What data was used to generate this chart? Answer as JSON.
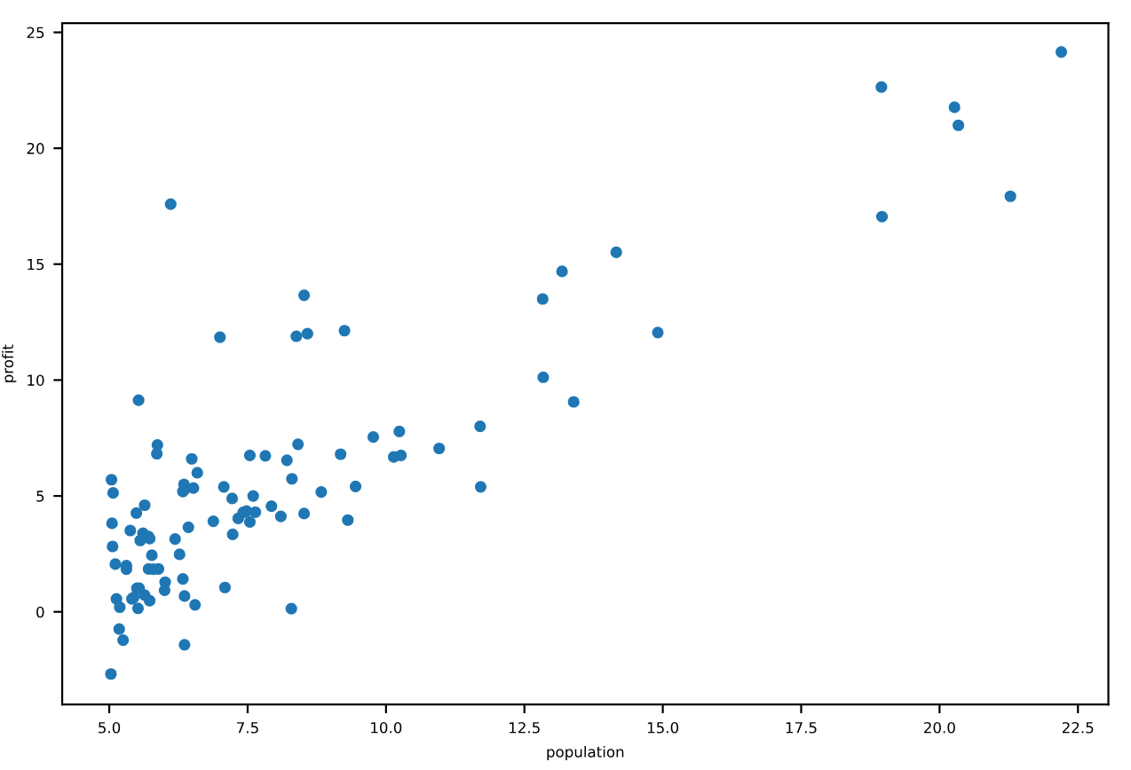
{
  "chart_data": {
    "type": "scatter",
    "xlabel": "population",
    "ylabel": "profit",
    "color": "#1f77b4",
    "marker": "circle",
    "x": [
      6.11,
      5.53,
      8.52,
      7.0,
      5.86,
      8.38,
      7.48,
      8.58,
      6.49,
      5.05,
      5.71,
      14.16,
      5.73,
      8.41,
      5.64,
      5.38,
      6.37,
      5.13,
      6.43,
      7.07,
      6.19,
      20.27,
      5.49,
      6.33,
      5.56,
      18.95,
      12.83,
      10.96,
      13.18,
      22.2,
      5.25,
      6.59,
      9.25,
      5.89,
      8.21,
      7.93,
      8.1,
      5.61,
      12.84,
      6.35,
      5.41,
      6.88,
      11.71,
      5.77,
      7.82,
      7.09,
      5.07,
      5.8,
      11.7,
      5.54,
      7.54,
      5.31,
      7.42,
      7.6,
      6.33,
      6.36,
      6.27,
      5.64,
      9.31,
      9.45,
      8.83,
      5.18,
      21.28,
      14.91,
      18.96,
      7.22,
      8.3,
      10.24,
      5.5,
      20.34,
      10.14,
      7.33,
      6.01,
      7.23,
      5.03,
      6.55,
      7.54,
      5.04,
      10.27,
      5.11,
      5.73,
      5.19,
      6.36,
      9.77,
      6.52,
      8.52,
      9.18,
      6.0,
      5.52,
      5.06,
      5.71,
      7.64,
      5.87,
      5.31,
      8.29,
      13.39,
      5.44
    ],
    "values": [
      17.59,
      9.13,
      13.66,
      11.85,
      6.82,
      11.89,
      4.35,
      12.0,
      6.6,
      3.82,
      3.25,
      15.51,
      3.16,
      7.23,
      0.72,
      3.51,
      5.3,
      0.56,
      3.65,
      5.39,
      3.14,
      21.77,
      4.26,
      5.19,
      3.08,
      22.64,
      13.5,
      7.05,
      14.69,
      24.15,
      -1.22,
      6.0,
      12.13,
      1.85,
      6.54,
      4.56,
      4.12,
      3.39,
      10.12,
      5.5,
      0.56,
      3.91,
      5.39,
      2.44,
      6.73,
      1.05,
      5.13,
      1.84,
      8.0,
      1.02,
      6.75,
      1.84,
      4.29,
      5.0,
      1.42,
      -1.42,
      2.48,
      4.6,
      3.96,
      5.41,
      5.17,
      -0.74,
      17.93,
      12.05,
      17.05,
      4.89,
      5.74,
      7.78,
      1.02,
      20.99,
      6.68,
      4.03,
      1.28,
      3.34,
      -2.68,
      0.3,
      3.88,
      5.7,
      6.75,
      2.06,
      0.48,
      0.2,
      0.68,
      7.54,
      5.34,
      4.24,
      6.8,
      0.93,
      0.15,
      2.82,
      1.85,
      4.3,
      7.2,
      1.99,
      0.14,
      9.06,
      0.62
    ],
    "xlim": [
      4.15,
      23.05
    ],
    "ylim": [
      -4.0,
      25.4
    ],
    "xticks": [
      {
        "value": 5,
        "label": "5.0"
      },
      {
        "value": 7.5,
        "label": "7.5"
      },
      {
        "value": 10,
        "label": "10.0"
      },
      {
        "value": 12.5,
        "label": "12.5"
      },
      {
        "value": 15,
        "label": "15.0"
      },
      {
        "value": 17.5,
        "label": "17.5"
      },
      {
        "value": 20,
        "label": "20.0"
      },
      {
        "value": 22.5,
        "label": "22.5"
      }
    ],
    "yticks": [
      0,
      5,
      10,
      15,
      20,
      25
    ],
    "grid": false
  }
}
